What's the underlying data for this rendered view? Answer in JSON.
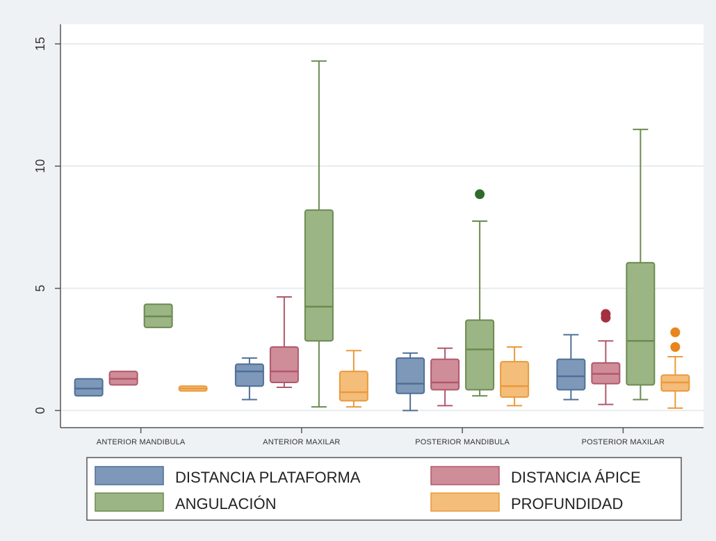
{
  "chart_data": {
    "type": "boxplot",
    "categories": [
      "ANTERIOR MANDIBULA",
      "ANTERIOR MAXILAR",
      "POSTERIOR MANDIBULA",
      "POSTERIOR MAXILAR"
    ],
    "ylim": [
      -0.7,
      15.8
    ],
    "yticks": [
      0,
      5,
      10,
      15
    ],
    "grid": true,
    "legend_position": "bottom",
    "series": [
      {
        "name": "DISTANCIA PLATAFORMA",
        "color": "#7d98b8",
        "stroke": "#4f6f96",
        "boxes": [
          {
            "min": 0.6,
            "q1": 0.6,
            "median": 0.9,
            "q3": 1.3,
            "max": 1.3,
            "outliers": []
          },
          {
            "min": 0.45,
            "q1": 1.0,
            "median": 1.6,
            "q3": 1.9,
            "max": 2.15,
            "outliers": []
          },
          {
            "min": 0.0,
            "q1": 0.7,
            "median": 1.1,
            "q3": 2.15,
            "max": 2.35,
            "outliers": []
          },
          {
            "min": 0.45,
            "q1": 0.85,
            "median": 1.4,
            "q3": 2.1,
            "max": 3.1,
            "outliers": []
          }
        ]
      },
      {
        "name": "DISTANCIA ÁPICE",
        "color": "#cf8c99",
        "stroke": "#b0586b",
        "boxes": [
          {
            "min": 1.05,
            "q1": 1.05,
            "median": 1.3,
            "q3": 1.6,
            "max": 1.6,
            "outliers": []
          },
          {
            "min": 0.95,
            "q1": 1.15,
            "median": 1.6,
            "q3": 2.6,
            "max": 4.65,
            "outliers": []
          },
          {
            "min": 0.2,
            "q1": 0.85,
            "median": 1.15,
            "q3": 2.1,
            "max": 2.55,
            "outliers": []
          },
          {
            "min": 0.25,
            "q1": 1.1,
            "median": 1.5,
            "q3": 1.95,
            "max": 2.85,
            "outliers": [
              3.8,
              3.95
            ]
          }
        ]
      },
      {
        "name": "ANGULACIÓN",
        "color": "#9bb585",
        "stroke": "#6b8a4f",
        "boxes": [
          {
            "min": 3.4,
            "q1": 3.4,
            "median": 3.85,
            "q3": 4.35,
            "max": 4.35,
            "outliers": []
          },
          {
            "min": 0.15,
            "q1": 2.85,
            "median": 4.25,
            "q3": 8.2,
            "max": 14.3,
            "outliers": []
          },
          {
            "min": 0.6,
            "q1": 0.85,
            "median": 2.5,
            "q3": 3.7,
            "max": 7.75,
            "outliers": [
              8.85
            ]
          },
          {
            "min": 0.45,
            "q1": 1.05,
            "median": 2.85,
            "q3": 6.05,
            "max": 11.5,
            "outliers": []
          }
        ]
      },
      {
        "name": "PROFUNDIDAD",
        "color": "#f4bd79",
        "stroke": "#e99a3c",
        "boxes": [
          {
            "min": 0.8,
            "q1": 0.8,
            "median": 0.9,
            "q3": 1.0,
            "max": 1.0,
            "outliers": []
          },
          {
            "min": 0.15,
            "q1": 0.4,
            "median": 0.75,
            "q3": 1.6,
            "max": 2.45,
            "outliers": []
          },
          {
            "min": 0.2,
            "q1": 0.55,
            "median": 1.0,
            "q3": 2.0,
            "max": 2.6,
            "outliers": []
          },
          {
            "min": 0.1,
            "q1": 0.8,
            "median": 1.15,
            "q3": 1.45,
            "max": 2.2,
            "outliers": [
              2.6,
              3.2
            ]
          }
        ]
      }
    ],
    "outlier_colors": [
      "#4f6f96",
      "#a4303f",
      "#2f6b2a",
      "#e8861c"
    ]
  }
}
